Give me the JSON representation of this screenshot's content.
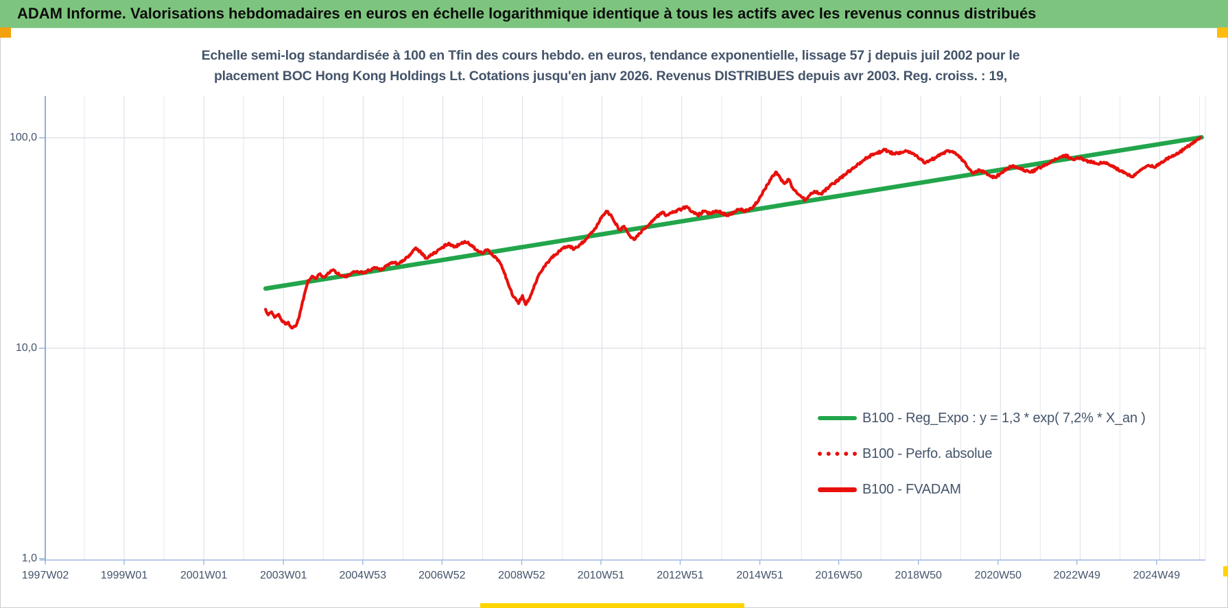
{
  "header": {
    "title": "ADAM Informe. Valorisations hebdomadaires en euros en échelle logarithmique identique à tous les actifs avec les revenus connus distribués"
  },
  "colors": {
    "header_bg": "#7dc57e",
    "trend_green": "#22a54b",
    "series_red": "#e8100c",
    "text_blue_gray": "#44546a",
    "marker_orange": "#f2a20d",
    "marker_yellow": "#ffd400"
  },
  "chart_data": {
    "type": "line",
    "title_line1": "Echelle semi-log standardisée à 100 en Tfin des cours hebdo. en euros, tendance exponentielle, lissage 57 j depuis juil 2002 pour le",
    "title_line2": "placement BOC Hong Kong Holdings Lt. Cotations jusqu'en janv 2026. Revenus DISTRIBUES depuis avr 2003. Reg. croiss. : 19,",
    "x_axis": {
      "labels": [
        "1997W02",
        "1999W01",
        "2001W01",
        "2003W01",
        "2004W53",
        "2006W52",
        "2008W52",
        "2010W51",
        "2012W51",
        "2014W51",
        "2016W50",
        "2018W50",
        "2020W50",
        "2022W49",
        "2024W49"
      ],
      "label_years": [
        1997.02,
        1999.0,
        2001.0,
        2003.0,
        2004.99,
        2006.98,
        2008.98,
        2010.97,
        2012.96,
        2014.96,
        2016.94,
        2018.94,
        2020.94,
        2022.92,
        2024.92
      ],
      "range_years": [
        1996.85,
        2026.3
      ],
      "grid": "yearly"
    },
    "y_axis": {
      "scale": "log",
      "tick_labels": [
        "100,0",
        "10,0",
        "1,0"
      ],
      "tick_values": [
        100,
        10,
        1
      ],
      "range": [
        1,
        160
      ]
    },
    "legend_position": "center-right",
    "series": [
      {
        "name": "B100 - Reg_Expo : y = 1,3 * exp( 7,2% *  X_an )",
        "color": "#22a54b",
        "style": "solid",
        "width": 6.5,
        "jagged": false,
        "points": [
          [
            2002.55,
            19.2
          ],
          [
            2026.05,
            100.5
          ]
        ]
      },
      {
        "name": "B100 - Perfo. absolue",
        "color": "#e8100c",
        "style": "dotted",
        "width": 4,
        "jagged": true,
        "points_same_as": "B100 - FVADAM"
      },
      {
        "name": "B100 - FVADAM",
        "color": "#e8100c",
        "style": "solid",
        "width": 4.2,
        "jagged": true,
        "points": [
          [
            2002.55,
            15.3
          ],
          [
            2002.62,
            14.4
          ],
          [
            2002.7,
            14.9
          ],
          [
            2002.78,
            14.0
          ],
          [
            2002.88,
            14.5
          ],
          [
            2002.95,
            13.6
          ],
          [
            2003.05,
            13.0
          ],
          [
            2003.12,
            13.3
          ],
          [
            2003.2,
            12.5
          ],
          [
            2003.3,
            12.7
          ],
          [
            2003.38,
            13.8
          ],
          [
            2003.46,
            16.0
          ],
          [
            2003.54,
            18.5
          ],
          [
            2003.62,
            21.0
          ],
          [
            2003.72,
            22.0
          ],
          [
            2003.82,
            21.4
          ],
          [
            2003.92,
            22.6
          ],
          [
            2004.02,
            21.8
          ],
          [
            2004.12,
            22.8
          ],
          [
            2004.25,
            23.6
          ],
          [
            2004.4,
            22.4
          ],
          [
            2004.55,
            21.8
          ],
          [
            2004.7,
            22.6
          ],
          [
            2004.85,
            23.2
          ],
          [
            2005.0,
            22.8
          ],
          [
            2005.15,
            23.4
          ],
          [
            2005.3,
            24.2
          ],
          [
            2005.45,
            23.6
          ],
          [
            2005.6,
            24.8
          ],
          [
            2005.75,
            25.6
          ],
          [
            2005.9,
            25.2
          ],
          [
            2006.05,
            26.4
          ],
          [
            2006.2,
            28.2
          ],
          [
            2006.32,
            30.0
          ],
          [
            2006.45,
            28.6
          ],
          [
            2006.58,
            26.8
          ],
          [
            2006.72,
            27.8
          ],
          [
            2006.85,
            28.8
          ],
          [
            2007.0,
            30.2
          ],
          [
            2007.15,
            31.6
          ],
          [
            2007.28,
            30.2
          ],
          [
            2007.42,
            31.2
          ],
          [
            2007.55,
            32.2
          ],
          [
            2007.7,
            31.0
          ],
          [
            2007.85,
            29.2
          ],
          [
            2008.0,
            28.2
          ],
          [
            2008.12,
            29.4
          ],
          [
            2008.25,
            27.6
          ],
          [
            2008.4,
            26.2
          ],
          [
            2008.52,
            23.5
          ],
          [
            2008.65,
            20.0
          ],
          [
            2008.78,
            17.5
          ],
          [
            2008.9,
            16.3
          ],
          [
            2009.0,
            17.8
          ],
          [
            2009.08,
            16.1
          ],
          [
            2009.18,
            17.2
          ],
          [
            2009.3,
            20.0
          ],
          [
            2009.42,
            22.5
          ],
          [
            2009.55,
            24.5
          ],
          [
            2009.7,
            26.5
          ],
          [
            2009.85,
            28.0
          ],
          [
            2010.0,
            29.8
          ],
          [
            2010.15,
            30.6
          ],
          [
            2010.3,
            29.6
          ],
          [
            2010.45,
            31.2
          ],
          [
            2010.6,
            33.0
          ],
          [
            2010.75,
            35.5
          ],
          [
            2010.9,
            39.0
          ],
          [
            2011.0,
            42.5
          ],
          [
            2011.1,
            44.8
          ],
          [
            2011.2,
            43.2
          ],
          [
            2011.32,
            39.5
          ],
          [
            2011.45,
            36.5
          ],
          [
            2011.55,
            38.0
          ],
          [
            2011.68,
            34.5
          ],
          [
            2011.8,
            32.8
          ],
          [
            2011.92,
            35.0
          ],
          [
            2012.05,
            36.8
          ],
          [
            2012.2,
            39.2
          ],
          [
            2012.35,
            41.8
          ],
          [
            2012.5,
            44.2
          ],
          [
            2012.62,
            42.8
          ],
          [
            2012.75,
            44.0
          ],
          [
            2012.88,
            45.2
          ],
          [
            2013.0,
            45.8
          ],
          [
            2013.12,
            47.2
          ],
          [
            2013.25,
            44.5
          ],
          [
            2013.4,
            42.8
          ],
          [
            2013.55,
            44.6
          ],
          [
            2013.7,
            43.6
          ],
          [
            2013.85,
            45.0
          ],
          [
            2014.0,
            44.2
          ],
          [
            2014.15,
            42.8
          ],
          [
            2014.3,
            44.2
          ],
          [
            2014.45,
            45.6
          ],
          [
            2014.6,
            44.8
          ],
          [
            2014.75,
            46.4
          ],
          [
            2014.9,
            49.5
          ],
          [
            2015.02,
            54.0
          ],
          [
            2015.15,
            60.0
          ],
          [
            2015.28,
            66.0
          ],
          [
            2015.38,
            68.5
          ],
          [
            2015.48,
            64.0
          ],
          [
            2015.58,
            60.5
          ],
          [
            2015.68,
            63.5
          ],
          [
            2015.78,
            58.0
          ],
          [
            2015.88,
            55.0
          ],
          [
            2016.0,
            52.5
          ],
          [
            2016.1,
            50.5
          ],
          [
            2016.22,
            53.5
          ],
          [
            2016.35,
            55.5
          ],
          [
            2016.5,
            54.0
          ],
          [
            2016.65,
            57.5
          ],
          [
            2016.8,
            60.5
          ],
          [
            2016.95,
            63.5
          ],
          [
            2017.1,
            67.0
          ],
          [
            2017.25,
            70.5
          ],
          [
            2017.4,
            74.5
          ],
          [
            2017.55,
            78.0
          ],
          [
            2017.7,
            81.5
          ],
          [
            2017.85,
            84.0
          ],
          [
            2018.0,
            86.0
          ],
          [
            2018.1,
            87.5
          ],
          [
            2018.22,
            85.5
          ],
          [
            2018.35,
            83.5
          ],
          [
            2018.5,
            85.5
          ],
          [
            2018.62,
            87.0
          ],
          [
            2018.75,
            85.0
          ],
          [
            2018.88,
            82.5
          ],
          [
            2019.0,
            79.5
          ],
          [
            2019.12,
            76.0
          ],
          [
            2019.25,
            78.5
          ],
          [
            2019.4,
            81.0
          ],
          [
            2019.55,
            84.0
          ],
          [
            2019.68,
            86.5
          ],
          [
            2019.82,
            85.0
          ],
          [
            2019.95,
            82.0
          ],
          [
            2020.08,
            77.0
          ],
          [
            2020.2,
            71.5
          ],
          [
            2020.32,
            67.5
          ],
          [
            2020.45,
            70.5
          ],
          [
            2020.58,
            69.0
          ],
          [
            2020.72,
            66.5
          ],
          [
            2020.85,
            64.8
          ],
          [
            2021.0,
            67.5
          ],
          [
            2021.15,
            71.0
          ],
          [
            2021.3,
            73.5
          ],
          [
            2021.45,
            71.5
          ],
          [
            2021.6,
            70.0
          ],
          [
            2021.75,
            68.5
          ],
          [
            2021.9,
            70.5
          ],
          [
            2022.05,
            73.0
          ],
          [
            2022.2,
            75.5
          ],
          [
            2022.35,
            78.0
          ],
          [
            2022.5,
            81.0
          ],
          [
            2022.62,
            82.5
          ],
          [
            2022.75,
            80.5
          ],
          [
            2022.88,
            79.0
          ],
          [
            2023.0,
            80.5
          ],
          [
            2023.15,
            78.0
          ],
          [
            2023.3,
            76.5
          ],
          [
            2023.45,
            75.0
          ],
          [
            2023.6,
            76.5
          ],
          [
            2023.75,
            74.0
          ],
          [
            2023.9,
            71.5
          ],
          [
            2024.05,
            69.0
          ],
          [
            2024.18,
            67.0
          ],
          [
            2024.3,
            65.5
          ],
          [
            2024.45,
            68.5
          ],
          [
            2024.58,
            71.5
          ],
          [
            2024.72,
            74.0
          ],
          [
            2024.85,
            72.5
          ],
          [
            2025.0,
            75.0
          ],
          [
            2025.12,
            78.0
          ],
          [
            2025.25,
            80.5
          ],
          [
            2025.38,
            82.5
          ],
          [
            2025.5,
            85.5
          ],
          [
            2025.62,
            88.5
          ],
          [
            2025.72,
            91.5
          ],
          [
            2025.82,
            94.5
          ],
          [
            2025.92,
            97.5
          ],
          [
            2026.02,
            100.5
          ]
        ]
      }
    ]
  }
}
